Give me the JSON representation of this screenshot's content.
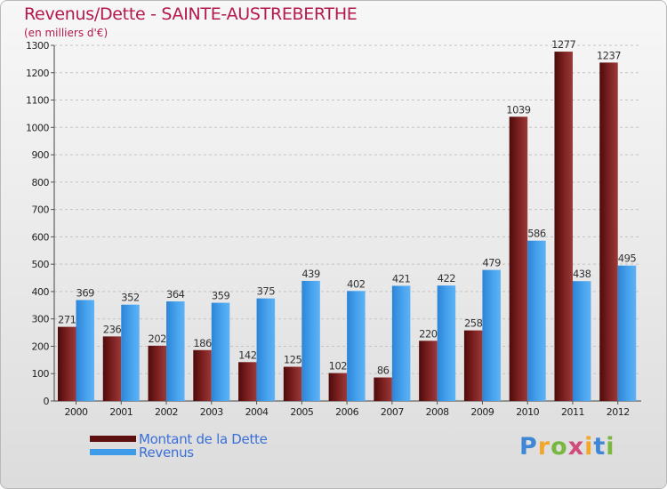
{
  "chart_data": {
    "type": "bar",
    "title": "Revenus/Dette - SAINTE-AUSTREBERTHE",
    "ylabel": "(en milliers d'€)",
    "xlabel": "",
    "ylim": [
      0,
      1300
    ],
    "yticks": [
      0,
      100,
      200,
      300,
      400,
      500,
      600,
      700,
      800,
      900,
      1000,
      1100,
      1200,
      1300
    ],
    "categories": [
      "2000",
      "2001",
      "2002",
      "2003",
      "2004",
      "2005",
      "2006",
      "2007",
      "2008",
      "2009",
      "2010",
      "2011",
      "2012"
    ],
    "series": [
      {
        "name": "Montant de la Dette",
        "color": "#7a1c1c",
        "values": [
          271,
          236,
          202,
          186,
          142,
          125,
          102,
          86,
          220,
          258,
          1039,
          1277,
          1237
        ]
      },
      {
        "name": "Revenus",
        "color": "#3d9be9",
        "values": [
          369,
          352,
          364,
          359,
          375,
          439,
          402,
          421,
          422,
          479,
          586,
          438,
          495
        ]
      }
    ],
    "grid": true,
    "legend": "bottom-left"
  },
  "logo": {
    "letters": [
      "P",
      "r",
      "o",
      "x",
      "i",
      "t",
      "i"
    ]
  }
}
